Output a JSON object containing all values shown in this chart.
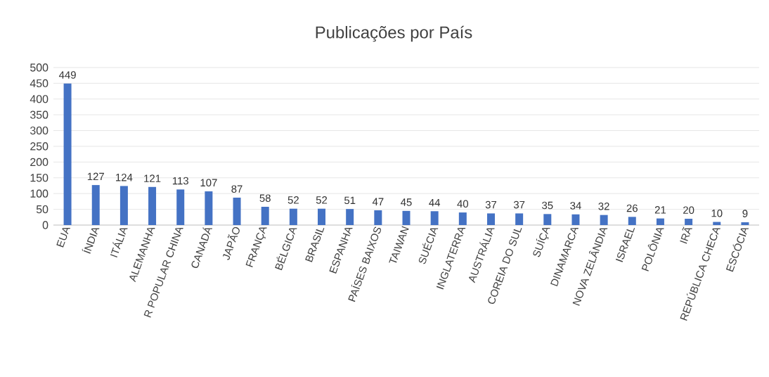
{
  "chart_data": {
    "type": "bar",
    "title": "Publicações por País",
    "categories": [
      "EUA",
      "ÍNDIA",
      "ITÁLIA",
      "ALEMANHA",
      "R POPULAR CHINA",
      "CANADÁ",
      "JAPÃO",
      "FRANÇA",
      "BÉLGICA",
      "BRASIL",
      "ESPANHA",
      "PAÍSES BAIXOS",
      "TAIWAN",
      "SUÉCIA",
      "INGLATERRA",
      "AUSTRÁLIA",
      "COREIA DO SUL",
      "SUÍÇA",
      "DINAMARCA",
      "NOVA ZELÂNDIA",
      "ISRAEL",
      "POLÔNIA",
      "IRÃ",
      "REPÚBLICA CHECA",
      "ESCÓCIA"
    ],
    "values": [
      449,
      127,
      124,
      121,
      113,
      107,
      87,
      58,
      52,
      52,
      51,
      47,
      45,
      44,
      40,
      37,
      37,
      35,
      34,
      32,
      26,
      21,
      20,
      10,
      9
    ],
    "color": "#4472c4",
    "ylim": [
      0,
      500
    ],
    "yticks": [
      0,
      50,
      100,
      150,
      200,
      250,
      300,
      350,
      400,
      450,
      500
    ],
    "grid": "y",
    "data_labels": true
  }
}
